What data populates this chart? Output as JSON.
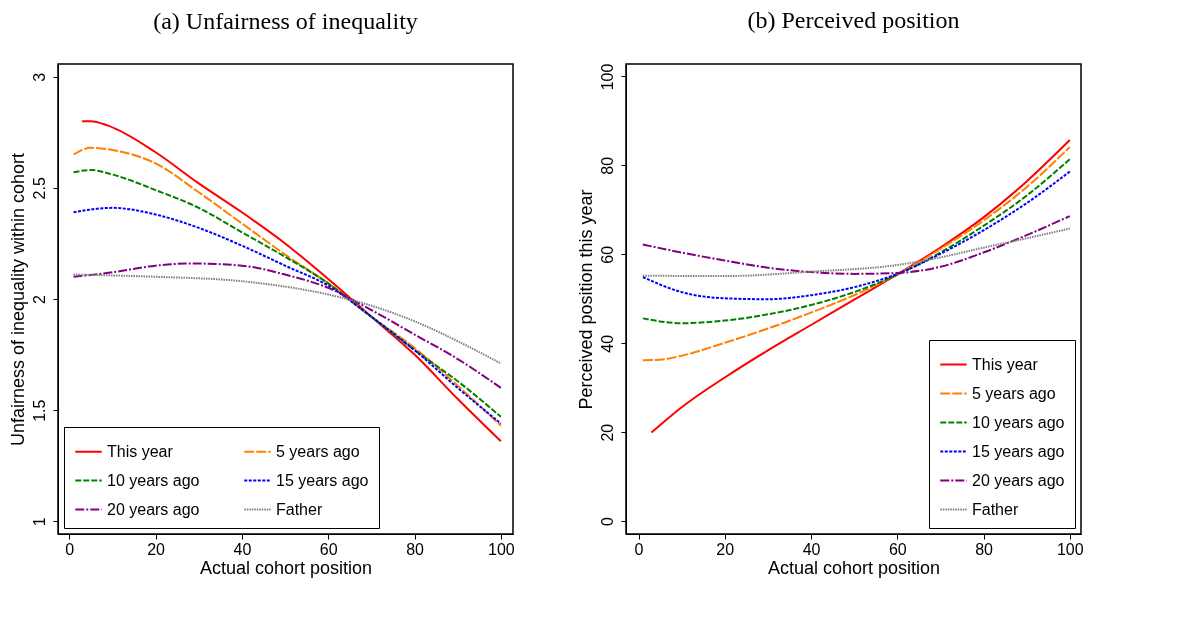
{
  "chart_data": [
    {
      "type": "line",
      "title": "(a) Unfairness of inequality",
      "xlabel": "Actual cohort position",
      "ylabel": "Unfairness of inequality within cohort",
      "xlim": [
        -2.6,
        102.8
      ],
      "ylim": [
        0.943,
        3.057
      ],
      "xticks": [
        0,
        20,
        40,
        60,
        80,
        100
      ],
      "yticks": [
        1,
        1.5,
        2,
        2.5,
        3
      ],
      "grid": false,
      "legend": "bottom left",
      "series": [
        {
          "name": "This year",
          "color": "#ff0000",
          "line_style": "solid",
          "x": [
            3,
            5,
            9,
            20,
            30,
            40,
            50,
            60,
            70,
            80,
            90,
            100
          ],
          "values": [
            2.8,
            2.8,
            2.78,
            2.66,
            2.52,
            2.39,
            2.25,
            2.09,
            1.92,
            1.75,
            1.55,
            1.36
          ]
        },
        {
          "name": "5 years ago",
          "color": "#ff8000",
          "line_style": "longdash",
          "x": [
            1,
            5,
            10,
            20,
            30,
            40,
            50,
            60,
            70,
            80,
            90,
            100
          ],
          "values": [
            2.65,
            2.68,
            2.67,
            2.61,
            2.48,
            2.34,
            2.2,
            2.07,
            1.92,
            1.78,
            1.61,
            1.43
          ]
        },
        {
          "name": "10 years ago",
          "color": "#008000",
          "line_style": "dashed",
          "x": [
            1,
            5,
            10,
            20,
            30,
            40,
            50,
            60,
            70,
            80,
            90,
            100
          ],
          "values": [
            2.57,
            2.58,
            2.56,
            2.49,
            2.41,
            2.3,
            2.19,
            2.07,
            1.92,
            1.77,
            1.63,
            1.47
          ]
        },
        {
          "name": "15 years ago",
          "color": "#0000ff",
          "line_style": "dotted",
          "x": [
            1,
            10,
            20,
            30,
            40,
            50,
            60,
            70,
            80,
            90,
            100
          ],
          "values": [
            2.39,
            2.41,
            2.38,
            2.32,
            2.24,
            2.15,
            2.06,
            1.92,
            1.77,
            1.6,
            1.44
          ]
        },
        {
          "name": "20 years ago",
          "color": "#800080",
          "line_style": "dashdot",
          "x": [
            1,
            10,
            20,
            28,
            40,
            50,
            60,
            70,
            80,
            90,
            100
          ],
          "values": [
            2.1,
            2.12,
            2.15,
            2.16,
            2.15,
            2.11,
            2.05,
            1.95,
            1.84,
            1.73,
            1.6
          ]
        },
        {
          "name": "Father",
          "color": "#808080",
          "line_style": "hatched",
          "x": [
            1,
            20,
            40,
            60,
            70,
            80,
            90,
            100
          ],
          "values": [
            2.11,
            2.1,
            2.08,
            2.02,
            1.97,
            1.9,
            1.81,
            1.71
          ]
        }
      ]
    },
    {
      "type": "line",
      "title": "(b) Perceived position",
      "xlabel": "Actual cohort position",
      "ylabel": "Perceived position this year",
      "xlim": [
        -2.9,
        102.6
      ],
      "ylim": [
        -2.9,
        102.8
      ],
      "xticks": [
        0,
        20,
        40,
        60,
        80,
        100
      ],
      "yticks": [
        0,
        20,
        40,
        60,
        80,
        100
      ],
      "grid": false,
      "legend": "bottom right",
      "series": [
        {
          "name": "This year",
          "color": "#ff0000",
          "line_style": "solid",
          "x": [
            3,
            10,
            20,
            30,
            40,
            50,
            60,
            70,
            80,
            90,
            100
          ],
          "values": [
            19.9,
            25.6,
            32.3,
            38.4,
            44.1,
            49.8,
            55.5,
            61.5,
            68.3,
            76.4,
            85.7
          ]
        },
        {
          "name": "5 years ago",
          "color": "#ff8000",
          "line_style": "longdash",
          "x": [
            1,
            5,
            10,
            20,
            30,
            40,
            50,
            60,
            70,
            80,
            90,
            100
          ],
          "values": [
            36.2,
            36.3,
            37.2,
            40.1,
            43.3,
            46.9,
            50.8,
            55.5,
            61.2,
            67.6,
            75.1,
            84.1
          ]
        },
        {
          "name": "10 years ago",
          "color": "#008000",
          "line_style": "dashed",
          "x": [
            1,
            10,
            20,
            30,
            40,
            50,
            60,
            70,
            80,
            90,
            100
          ],
          "values": [
            45.6,
            44.5,
            45.1,
            46.5,
            48.6,
            51.5,
            55.4,
            60.4,
            66.4,
            73.2,
            81.4
          ]
        },
        {
          "name": "15 years ago",
          "color": "#0000ff",
          "line_style": "dotted",
          "x": [
            1,
            10,
            20,
            30,
            40,
            50,
            60,
            70,
            80,
            90,
            100
          ],
          "values": [
            54.9,
            51.5,
            50.1,
            49.9,
            50.8,
            52.6,
            55.6,
            60.1,
            65.4,
            71.5,
            78.6
          ]
        },
        {
          "name": "20 years ago",
          "color": "#800080",
          "line_style": "dashdot",
          "x": [
            1,
            10,
            20,
            30,
            40,
            50,
            60,
            70,
            80,
            90,
            100
          ],
          "values": [
            62.2,
            60.4,
            58.6,
            57.0,
            56.0,
            55.6,
            55.8,
            57.2,
            60.4,
            64.3,
            68.6
          ]
        },
        {
          "name": "Father",
          "color": "#808080",
          "line_style": "hatched",
          "x": [
            1,
            20,
            40,
            60,
            70,
            80,
            90,
            100
          ],
          "values": [
            55.2,
            55.1,
            56.1,
            57.6,
            59.3,
            61.5,
            63.6,
            65.8
          ]
        }
      ]
    }
  ]
}
